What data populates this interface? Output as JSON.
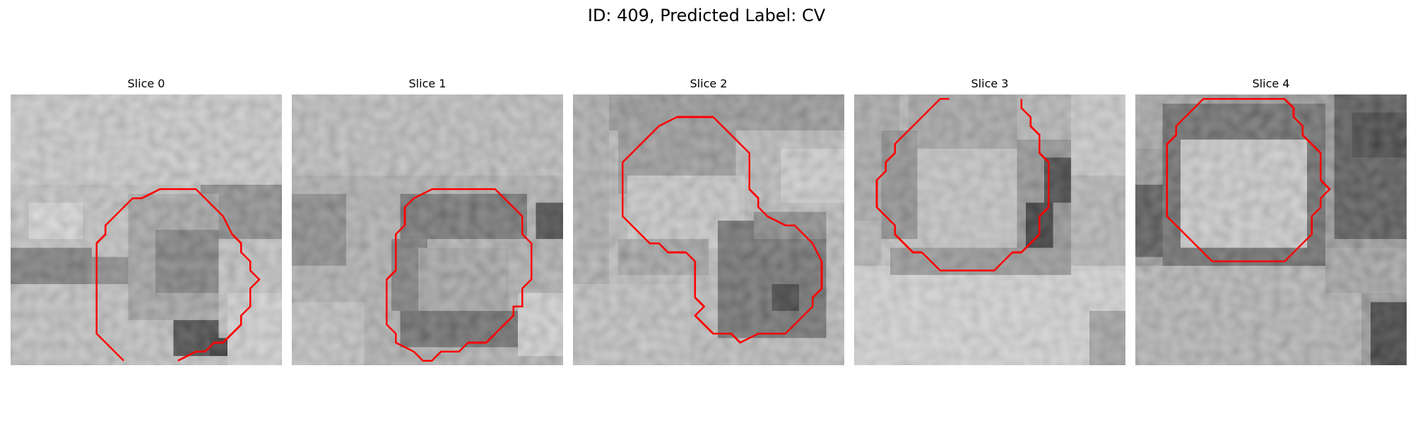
{
  "figure": {
    "title": "ID: 409, Predicted Label: CV"
  },
  "slices": [
    {
      "title": "Slice 0"
    },
    {
      "title": "Slice 1"
    },
    {
      "title": "Slice 2"
    },
    {
      "title": "Slice 3"
    },
    {
      "title": "Slice 4"
    }
  ],
  "colors": {
    "contour": "#ff0000",
    "background": "#ffffff",
    "colormap": "gray"
  }
}
